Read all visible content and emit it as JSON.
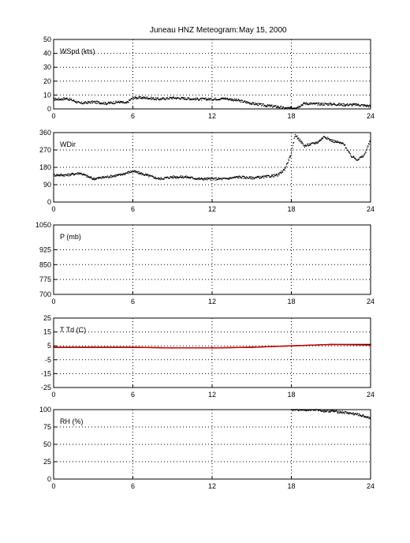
{
  "figure": {
    "station_title": "Juneau HNZ Meteogram:",
    "date": "May 15, 2000"
  },
  "chart_data": [
    {
      "type": "scatter",
      "label": "WSpd (kts)",
      "x_ticks": [
        0,
        6,
        12,
        18,
        24
      ],
      "y_ticks": [
        0,
        10,
        20,
        30,
        40,
        50
      ],
      "xlim": [
        0,
        24
      ],
      "ylim": [
        0,
        50
      ],
      "grid": true,
      "series": [
        {
          "color": "#000000",
          "points": [
            [
              0,
              7
            ],
            [
              0.5,
              7
            ],
            [
              1,
              7.5
            ],
            [
              1.5,
              6
            ],
            [
              2,
              4
            ],
            [
              3,
              5
            ],
            [
              4,
              4
            ],
            [
              5,
              5
            ],
            [
              5.5,
              4
            ],
            [
              6,
              8
            ],
            [
              7,
              8
            ],
            [
              8,
              7
            ],
            [
              9,
              8
            ],
            [
              10,
              7.5
            ],
            [
              11,
              7
            ],
            [
              12,
              7
            ],
            [
              13,
              7.5
            ],
            [
              14,
              6
            ],
            [
              15,
              4
            ],
            [
              16,
              2.5
            ],
            [
              17,
              1.5
            ],
            [
              17.5,
              0.5
            ],
            [
              18,
              0.5
            ],
            [
              18.5,
              1.5
            ],
            [
              19,
              4
            ],
            [
              20,
              3.5
            ],
            [
              21,
              3.5
            ],
            [
              22,
              3
            ],
            [
              23,
              3
            ],
            [
              24,
              2
            ]
          ]
        }
      ]
    },
    {
      "type": "scatter",
      "label": "WDir",
      "x_ticks": [
        0,
        6,
        12,
        18,
        24
      ],
      "y_ticks": [
        0,
        90,
        180,
        270,
        360
      ],
      "xlim": [
        0,
        24
      ],
      "ylim": [
        0,
        360
      ],
      "grid": true,
      "series": [
        {
          "color": "#000000",
          "points": [
            [
              0,
              140
            ],
            [
              1,
              140
            ],
            [
              2,
              150
            ],
            [
              3,
              120
            ],
            [
              4,
              130
            ],
            [
              5,
              140
            ],
            [
              6,
              160
            ],
            [
              7,
              140
            ],
            [
              8,
              120
            ],
            [
              9,
              130
            ],
            [
              10,
              130
            ],
            [
              11,
              120
            ],
            [
              12,
              120
            ],
            [
              13,
              120
            ],
            [
              14,
              130
            ],
            [
              15,
              125
            ],
            [
              16,
              130
            ],
            [
              17,
              140
            ],
            [
              17.5,
              170
            ],
            [
              18,
              250
            ],
            [
              18.3,
              350
            ],
            [
              19,
              290
            ],
            [
              20,
              310
            ],
            [
              20.5,
              340
            ],
            [
              21,
              320
            ],
            [
              22,
              300
            ],
            [
              22.5,
              240
            ],
            [
              23,
              220
            ],
            [
              23.5,
              240
            ],
            [
              24,
              320
            ]
          ]
        }
      ]
    },
    {
      "type": "scatter",
      "label": "P (mb)",
      "x_ticks": [
        0,
        6,
        12,
        18,
        24
      ],
      "y_ticks": [
        700,
        775,
        850,
        925,
        1050
      ],
      "xlim": [
        0,
        24
      ],
      "ylim": [
        700,
        1050
      ],
      "grid": true,
      "series": []
    },
    {
      "type": "line",
      "label": "T Td (C)",
      "x_ticks": [
        0,
        6,
        12,
        18,
        24
      ],
      "y_ticks": [
        -25,
        -15,
        -5,
        5,
        15,
        25
      ],
      "xlim": [
        0,
        24
      ],
      "ylim": [
        -25,
        25
      ],
      "grid": true,
      "series": [
        {
          "color": "#000000",
          "points": [
            [
              0,
              4
            ],
            [
              3,
              4
            ],
            [
              6,
              4
            ],
            [
              9,
              3.5
            ],
            [
              12,
              3.5
            ],
            [
              15,
              4
            ],
            [
              18,
              5
            ],
            [
              21,
              6
            ],
            [
              24,
              6
            ]
          ]
        },
        {
          "color": "#cc0000",
          "points": [
            [
              0,
              4
            ],
            [
              3,
              4
            ],
            [
              6,
              4
            ],
            [
              9,
              3.5
            ],
            [
              12,
              3.5
            ],
            [
              15,
              4
            ],
            [
              18,
              5
            ],
            [
              21,
              6
            ],
            [
              24,
              5.5
            ]
          ]
        }
      ]
    },
    {
      "type": "scatter",
      "label": "RH (%)",
      "x_ticks": [
        0,
        6,
        12,
        18,
        24
      ],
      "y_ticks": [
        0,
        25,
        50,
        75,
        100
      ],
      "xlim": [
        0,
        24
      ],
      "ylim": [
        0,
        100
      ],
      "grid": true,
      "series": [
        {
          "color": "#000000",
          "points": [
            [
              18,
              100
            ],
            [
              19,
              100
            ],
            [
              20,
              100
            ],
            [
              20.5,
              98
            ],
            [
              21,
              98
            ],
            [
              22,
              96
            ],
            [
              23,
              93
            ],
            [
              24,
              88
            ]
          ]
        }
      ]
    }
  ]
}
